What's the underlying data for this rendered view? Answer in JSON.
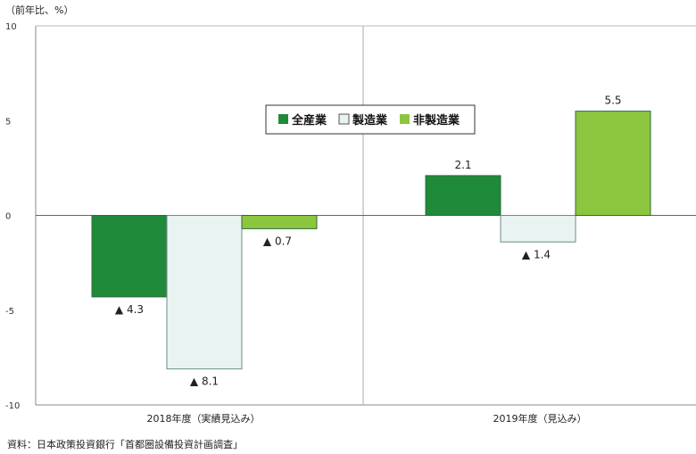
{
  "unit_label": "（前年比、%）",
  "source": "資料：日本政策投資銀行「首都圏設備投資計画調査」",
  "chart_data": {
    "type": "bar",
    "categories": [
      "2018年度（実績見込み）",
      "2019年度（見込み）"
    ],
    "series": [
      {
        "name": "全産業",
        "values": [
          -4.3,
          2.1
        ],
        "labels": [
          "▲ 4.3",
          "2.1"
        ],
        "color": "#1f8a3a"
      },
      {
        "name": "製造業",
        "values": [
          -8.1,
          -1.4
        ],
        "labels": [
          "▲ 8.1",
          "▲ 1.4"
        ],
        "color": "#e9f3f1"
      },
      {
        "name": "非製造業",
        "values": [
          -0.7,
          5.5
        ],
        "labels": [
          "▲ 0.7",
          "5.5"
        ],
        "color": "#8cc63f"
      }
    ],
    "ylim": [
      -10,
      10
    ],
    "yticks": [
      10,
      5,
      0,
      -5,
      -10
    ],
    "legend_position": "top-center",
    "grid": false
  }
}
